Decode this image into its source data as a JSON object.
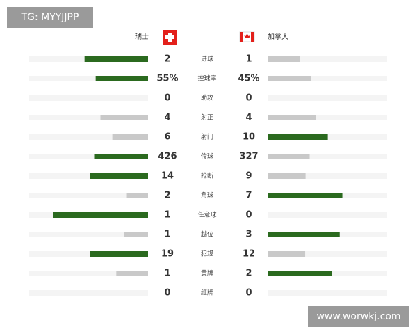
{
  "watermark_top": "TG: MYYJJPP",
  "watermark_bottom": "www.worwkj.com",
  "home_team": "瑞士",
  "away_team": "加拿大",
  "lead_color": "#2b6a1f",
  "other_color": "#c9c9c9",
  "rows": [
    {
      "label": "进球",
      "home": 2,
      "away": 1
    },
    {
      "label": "控球率",
      "home": 55,
      "away": 45,
      "home_label": "55%",
      "away_label": "45%"
    },
    {
      "label": "助攻",
      "home": 0,
      "away": 0
    },
    {
      "label": "射正",
      "home": 4,
      "away": 4
    },
    {
      "label": "射门",
      "home": 6,
      "away": 10
    },
    {
      "label": "传球",
      "home": 426,
      "away": 327
    },
    {
      "label": "抢断",
      "home": 14,
      "away": 9
    },
    {
      "label": "角球",
      "home": 2,
      "away": 7
    },
    {
      "label": "任意球",
      "home": 1,
      "away": 0
    },
    {
      "label": "越位",
      "home": 1,
      "away": 3
    },
    {
      "label": "犯规",
      "home": 19,
      "away": 12
    },
    {
      "label": "黄牌",
      "home": 1,
      "away": 2
    },
    {
      "label": "红牌",
      "home": 0,
      "away": 0
    }
  ]
}
